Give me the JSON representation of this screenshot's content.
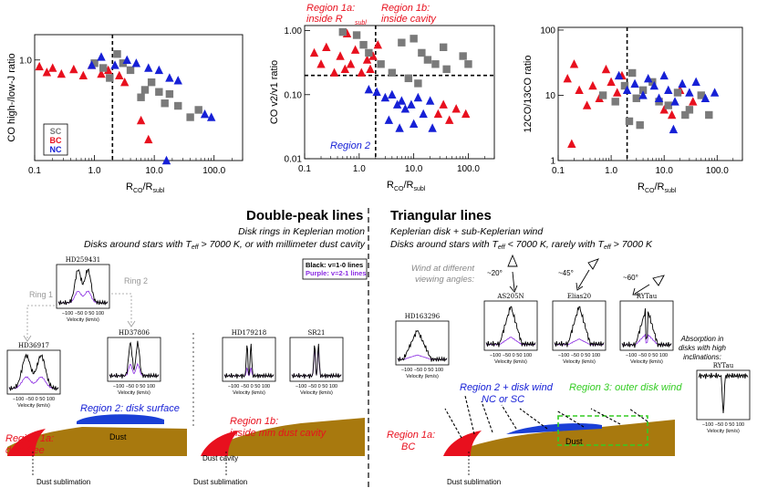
{
  "chart_data": [
    {
      "type": "scatter",
      "id": "p1",
      "ylabel": "CO high-/low-J ratio",
      "xlabel_main": "R",
      "xlabel_sub_num": "CO",
      "xlabel_sub_den": "subl",
      "xlim": [
        0.1,
        300
      ],
      "ylim": [
        0.2,
        1.5
      ],
      "xticks": [
        "0.1",
        "1.0",
        "10.0",
        "100.0"
      ],
      "yticks": [
        "1.0"
      ],
      "vline_x": 2,
      "legend": [
        "SC",
        "BC",
        "NC"
      ],
      "series": [
        {
          "name": "BC",
          "color": "#e8101e",
          "points": [
            [
              0.12,
              0.9
            ],
            [
              0.16,
              0.82
            ],
            [
              0.2,
              0.88
            ],
            [
              0.28,
              0.8
            ],
            [
              0.45,
              0.86
            ],
            [
              0.65,
              0.78
            ],
            [
              0.9,
              0.92
            ],
            [
              1.3,
              0.8
            ],
            [
              1.7,
              0.85
            ],
            [
              2.6,
              0.78
            ],
            [
              3.2,
              0.7
            ],
            [
              6,
              0.38
            ],
            [
              8,
              0.28
            ]
          ]
        },
        {
          "name": "SC",
          "color": "#7a7a7a",
          "points": [
            [
              1.0,
              0.95
            ],
            [
              1.4,
              0.88
            ],
            [
              1.8,
              0.75
            ],
            [
              2.4,
              1.1
            ],
            [
              3.0,
              0.95
            ],
            [
              4,
              0.85
            ],
            [
              6,
              0.55
            ],
            [
              7,
              0.62
            ],
            [
              9,
              0.7
            ],
            [
              12,
              0.6
            ],
            [
              15,
              0.5
            ],
            [
              18,
              0.58
            ],
            [
              25,
              0.48
            ],
            [
              40,
              0.4
            ],
            [
              55,
              0.45
            ]
          ]
        },
        {
          "name": "NC",
          "color": "#1620d6",
          "points": [
            [
              0.9,
              0.92
            ],
            [
              1.3,
              1.05
            ],
            [
              2.2,
              0.92
            ],
            [
              3.5,
              1.0
            ],
            [
              5,
              0.95
            ],
            [
              8,
              0.88
            ],
            [
              12,
              0.85
            ],
            [
              18,
              0.75
            ],
            [
              25,
              0.72
            ],
            [
              70,
              0.42
            ],
            [
              90,
              0.4
            ],
            [
              16,
              0.2
            ]
          ]
        }
      ]
    },
    {
      "type": "scatter",
      "id": "p2",
      "ylabel": "CO v2/v1 ratio",
      "xlabel_main": "R",
      "xlabel_sub_num": "CO",
      "xlabel_sub_den": "subl",
      "xlim": [
        0.1,
        300
      ],
      "ylim": [
        0.01,
        1.2
      ],
      "xticks": [
        "0.1",
        "1.0",
        "10.0",
        "100.0"
      ],
      "yticks": [
        "1.00",
        "0.10",
        "0.01"
      ],
      "vline_x": 2,
      "hline_y": 0.2,
      "region_labels": {
        "r1a": "Region 1a:",
        "r1a_sub": "inside R",
        "r1a_subsub": "subl",
        "r1b": "Region 1b:",
        "r1b_sub": "inside cavity",
        "r2": "Region 2"
      },
      "series": [
        {
          "name": "BC",
          "color": "#e8101e",
          "points": [
            [
              0.15,
              0.45
            ],
            [
              0.2,
              0.3
            ],
            [
              0.25,
              0.55
            ],
            [
              0.35,
              0.22
            ],
            [
              0.45,
              0.4
            ],
            [
              0.55,
              0.25
            ],
            [
              0.7,
              0.3
            ],
            [
              0.85,
              0.5
            ],
            [
              1.1,
              0.22
            ],
            [
              1.4,
              0.35
            ],
            [
              1.6,
              0.25
            ],
            [
              1.8,
              0.4
            ],
            [
              2.2,
              0.6
            ],
            [
              0.6,
              0.9
            ],
            [
              28,
              0.05
            ],
            [
              35,
              0.07
            ],
            [
              45,
              0.04
            ],
            [
              60,
              0.06
            ],
            [
              90,
              0.05
            ]
          ]
        },
        {
          "name": "SC",
          "color": "#7a7a7a",
          "points": [
            [
              0.5,
              0.95
            ],
            [
              0.9,
              0.85
            ],
            [
              1.2,
              0.6
            ],
            [
              1.5,
              0.45
            ],
            [
              2.5,
              0.3
            ],
            [
              4,
              0.22
            ],
            [
              6,
              0.65
            ],
            [
              10,
              0.75
            ],
            [
              14,
              0.45
            ],
            [
              18,
              0.35
            ],
            [
              25,
              0.3
            ],
            [
              35,
              0.55
            ],
            [
              40,
              0.25
            ],
            [
              80,
              0.4
            ],
            [
              100,
              0.3
            ],
            [
              8,
              0.18
            ],
            [
              12,
              0.15
            ]
          ]
        },
        {
          "name": "NC",
          "color": "#1620d6",
          "points": [
            [
              1.5,
              0.12
            ],
            [
              2.1,
              0.11
            ],
            [
              3,
              0.09
            ],
            [
              4,
              0.1
            ],
            [
              5,
              0.07
            ],
            [
              6,
              0.08
            ],
            [
              7,
              0.06
            ],
            [
              9,
              0.07
            ],
            [
              12,
              0.09
            ],
            [
              15,
              0.05
            ],
            [
              20,
              0.08
            ],
            [
              3.5,
              0.04
            ],
            [
              5.5,
              0.03
            ],
            [
              10,
              0.035
            ],
            [
              22,
              0.03
            ]
          ]
        }
      ]
    },
    {
      "type": "scatter",
      "id": "p3",
      "ylabel": "12CO/13CO ratio",
      "xlabel_main": "R",
      "xlabel_sub_num": "CO",
      "xlabel_sub_den": "subl",
      "xlim": [
        0.1,
        300
      ],
      "ylim": [
        1,
        110
      ],
      "xticks": [
        "0.1",
        "1.0",
        "10.0",
        "100.0"
      ],
      "yticks": [
        "100",
        "10",
        "1"
      ],
      "vline_x": 2,
      "series": [
        {
          "name": "BC",
          "color": "#e8101e",
          "points": [
            [
              0.15,
              18
            ],
            [
              0.25,
              12
            ],
            [
              0.35,
              7
            ],
            [
              0.45,
              14
            ],
            [
              0.6,
              9
            ],
            [
              0.8,
              25
            ],
            [
              1.0,
              16
            ],
            [
              1.3,
              11
            ],
            [
              1.6,
              20
            ],
            [
              0.2,
              30
            ],
            [
              10,
              6
            ],
            [
              14,
              5
            ],
            [
              20,
              12
            ],
            [
              35,
              8
            ],
            [
              0.18,
              1.8
            ]
          ]
        },
        {
          "name": "SC",
          "color": "#7a7a7a",
          "points": [
            [
              0.7,
              10
            ],
            [
              1.2,
              8
            ],
            [
              1.8,
              14
            ],
            [
              2.5,
              22
            ],
            [
              3,
              9
            ],
            [
              4,
              12
            ],
            [
              6,
              16
            ],
            [
              8,
              8
            ],
            [
              12,
              7
            ],
            [
              18,
              11
            ],
            [
              25,
              5
            ],
            [
              30,
              6
            ],
            [
              50,
              10
            ],
            [
              70,
              5
            ],
            [
              3.5,
              3.5
            ],
            [
              2.2,
              4
            ]
          ]
        },
        {
          "name": "NC",
          "color": "#1620d6",
          "points": [
            [
              1.4,
              20
            ],
            [
              2,
              12
            ],
            [
              2.8,
              15
            ],
            [
              4,
              10
            ],
            [
              5,
              18
            ],
            [
              6.5,
              14
            ],
            [
              8,
              9
            ],
            [
              10,
              20
            ],
            [
              12,
              12
            ],
            [
              16,
              8
            ],
            [
              22,
              15
            ],
            [
              30,
              11
            ],
            [
              40,
              16
            ],
            [
              60,
              9
            ],
            [
              90,
              11
            ],
            [
              15,
              3
            ]
          ]
        }
      ]
    }
  ],
  "left_section": {
    "title": "Double-peak lines",
    "line1": "Disk rings in Keplerian motion",
    "line2_a": "Disks around stars with T",
    "line2_sub": "eff",
    "line2_b": " > 7000 K, or with millimeter dust cavity",
    "legend_black": "Black: v=1-0 lines",
    "legend_purple": "Purple: v=2-1 lines",
    "ring1": "Ring 1",
    "ring2": "Ring 2",
    "spectra": [
      "HD259431",
      "HD36917",
      "HD37806",
      "HD179218",
      "SR21"
    ],
    "ticks": "−100 −50  0  50 100",
    "axis": "Velocity (km/s)",
    "region2": "Region 2: disk surface",
    "region1a": "Region 1a:",
    "region1a_sub": "dust free",
    "region1b": "Region 1b:",
    "region1b_sub": "inside mm dust cavity",
    "dust": "Dust",
    "dust_sublimation": "Dust sublimation",
    "dust_cavity": "Dust cavity"
  },
  "right_section": {
    "title": "Triangular lines",
    "line1": "Keplerian disk + sub-Keplerian wind",
    "line2_a": "Disks around stars with T",
    "line2_sub": "eff",
    "line2_b": " < 7000 K, rarely with T",
    "line2_c": " > 7000 K",
    "wind": "Wind at different",
    "wind2": "viewing angles:",
    "angles": [
      "~20°",
      "~45°",
      "~60°"
    ],
    "spectra": [
      "HD163296",
      "AS205N",
      "Elias20",
      "RYTau"
    ],
    "absorption": [
      "Absorption in",
      "disks with high",
      "inclinations:"
    ],
    "abs_spectrum": "RYTau",
    "region2": "Region 2 + disk wind",
    "region2_sub": "NC or SC",
    "region3": "Region 3: outer disk wind",
    "region1a": "Region 1a:",
    "region1a_sub": "BC",
    "dust": "Dust",
    "dust_sublimation": "Dust sublimation",
    "ticks": "−100 −50  0  50 100",
    "axis": "Velocity (km/s)"
  },
  "colors": {
    "red": "#e8101e",
    "blue": "#1620d6",
    "grey": "#7a7a7a",
    "purple": "#8a2be2",
    "dust": "#a8790e",
    "green": "#33cc22"
  }
}
